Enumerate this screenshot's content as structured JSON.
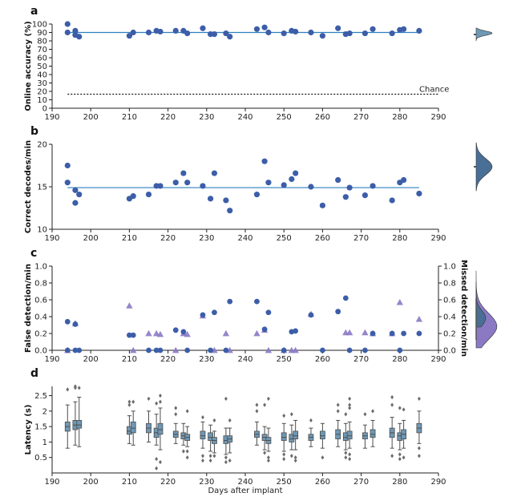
{
  "colors": {
    "dot": "#3c5ea8",
    "line": "#2f7fbf",
    "false_axis": "#2f6db3",
    "missed": "#8b79c4",
    "missed_axis": "#6a55a8",
    "box": "#6f98b5",
    "box_edge": "#4d4d4d",
    "flier": "#6b6b6b"
  },
  "chart_data": [
    {
      "panel": "a",
      "type": "scatter",
      "ylabel": "Online accuracy (%)",
      "ylim": [
        0,
        100
      ],
      "yticks": [
        0,
        10,
        20,
        30,
        40,
        50,
        60,
        70,
        80,
        90,
        100
      ],
      "xlim": [
        190,
        290
      ],
      "xticks": [
        190,
        200,
        210,
        220,
        230,
        240,
        250,
        260,
        270,
        280,
        290
      ],
      "annotation": "Chance",
      "chance_level": 16.7,
      "trend": {
        "x": [
          194,
          285
        ],
        "y": [
          90,
          90
        ]
      },
      "points": {
        "x": [
          194,
          194,
          196,
          196,
          197,
          210,
          211,
          215,
          217,
          218,
          222,
          224,
          225,
          229,
          231,
          232,
          235,
          236,
          243,
          245,
          246,
          250,
          252,
          253,
          257,
          260,
          264,
          266,
          267,
          271,
          273,
          278,
          280,
          281,
          285
        ],
        "y": [
          100,
          90,
          92,
          87,
          85,
          86,
          90,
          90,
          92,
          91,
          92,
          92,
          89,
          95,
          88,
          88,
          89,
          85,
          94,
          96,
          90,
          89,
          92,
          91,
          90,
          86,
          95,
          88,
          89,
          89,
          94,
          89,
          93,
          94,
          92
        ]
      }
    },
    {
      "panel": "b",
      "type": "scatter",
      "ylabel": "Correct decodes/min",
      "ylim": [
        10,
        20
      ],
      "yticks": [
        10,
        15,
        20
      ],
      "xlim": [
        190,
        290
      ],
      "xticks": [
        190,
        200,
        210,
        220,
        230,
        240,
        250,
        260,
        270,
        280,
        290
      ],
      "trend": {
        "x": [
          194,
          285
        ],
        "y": [
          14.9,
          14.9
        ]
      },
      "points": {
        "x": [
          194,
          194,
          196,
          196,
          197,
          210,
          211,
          215,
          217,
          218,
          222,
          224,
          225,
          229,
          231,
          232,
          235,
          236,
          243,
          245,
          246,
          250,
          252,
          253,
          257,
          260,
          264,
          266,
          267,
          271,
          273,
          278,
          280,
          281,
          285
        ],
        "y": [
          17.5,
          15.5,
          14.6,
          13.1,
          14.1,
          13.6,
          13.9,
          14.1,
          15.1,
          15.1,
          15.5,
          16.6,
          15.5,
          15.1,
          13.6,
          16.6,
          13.4,
          12.2,
          14.1,
          18,
          15.5,
          15.2,
          15.9,
          16.6,
          15,
          12.8,
          15.8,
          13.8,
          14.9,
          14,
          15.1,
          13.4,
          15.5,
          15.8,
          14.2
        ]
      }
    },
    {
      "panel": "c",
      "type": "scatter",
      "ylabel": "False detection/min",
      "ylabel_right": "Missed detection/min",
      "ylim": [
        0,
        1
      ],
      "yticks": [
        0,
        0.2,
        0.4,
        0.6,
        0.8,
        1
      ],
      "xlim": [
        190,
        290
      ],
      "xticks": [
        190,
        200,
        210,
        220,
        230,
        240,
        250,
        260,
        270,
        280,
        290
      ],
      "series": [
        {
          "marker": "circle",
          "x": [
            194,
            194,
            196,
            196,
            197,
            210,
            211,
            215,
            217,
            218,
            222,
            224,
            225,
            229,
            231,
            232,
            235,
            236,
            243,
            245,
            246,
            250,
            252,
            253,
            257,
            260,
            264,
            266,
            267,
            271,
            273,
            278,
            280,
            281,
            285
          ],
          "y": [
            0.34,
            0,
            0.31,
            0,
            0,
            0.18,
            0.18,
            0,
            0,
            0,
            0.24,
            0.22,
            0,
            0.42,
            0,
            0.45,
            0,
            0.58,
            0.58,
            0.25,
            0.45,
            0,
            0.22,
            0.23,
            0.42,
            0,
            0.46,
            0.62,
            0,
            0,
            0.2,
            0.2,
            0,
            0.2,
            0.2
          ]
        },
        {
          "marker": "triangle",
          "x": [
            194,
            196,
            210,
            211,
            215,
            217,
            218,
            222,
            224,
            225,
            229,
            232,
            235,
            236,
            243,
            245,
            246,
            250,
            252,
            253,
            257,
            266,
            267,
            271,
            273,
            278,
            280,
            285
          ],
          "y": [
            0,
            0.32,
            0.53,
            0,
            0.2,
            0.2,
            0.19,
            0,
            0.2,
            0.19,
            0.41,
            0,
            0.2,
            0,
            0.2,
            0.24,
            0,
            0,
            0,
            0,
            0.43,
            0.21,
            0.21,
            0.21,
            0.2,
            0.2,
            0.57,
            0.37
          ]
        }
      ]
    },
    {
      "panel": "d",
      "type": "box",
      "xlabel": "Days after implant",
      "ylabel": "Latency (s)",
      "ylim": [
        0,
        2.8
      ],
      "yticks": [
        0.5,
        1,
        1.5,
        2,
        2.5
      ],
      "xlim": [
        190,
        290
      ],
      "xticks": [
        190,
        200,
        210,
        220,
        230,
        240,
        250,
        260,
        270,
        280,
        290
      ],
      "boxes": [
        {
          "x": 194,
          "q1": 1.35,
          "median": 1.5,
          "q3": 1.65,
          "lo": 0.8,
          "hi": 2.2,
          "fliers": [
            2.7
          ]
        },
        {
          "x": 196,
          "q1": 1.4,
          "median": 1.55,
          "q3": 1.7,
          "lo": 0.9,
          "hi": 2.3,
          "fliers": [
            2.75,
            2.8
          ]
        },
        {
          "x": 197,
          "q1": 1.45,
          "median": 1.55,
          "q3": 1.7,
          "lo": 0.85,
          "hi": 2.45,
          "fliers": [
            2.75
          ]
        },
        {
          "x": 210,
          "q1": 1.25,
          "median": 1.35,
          "q3": 1.5,
          "lo": 0.95,
          "hi": 1.85,
          "fliers": [
            2.3,
            2.2
          ]
        },
        {
          "x": 211,
          "q1": 1.3,
          "median": 1.45,
          "q3": 1.65,
          "lo": 0.9,
          "hi": 2.0,
          "fliers": [
            2.3
          ]
        },
        {
          "x": 215,
          "q1": 1.3,
          "median": 1.45,
          "q3": 1.6,
          "lo": 1.0,
          "hi": 2.0,
          "fliers": [
            2.4
          ]
        },
        {
          "x": 217,
          "q1": 1.15,
          "median": 1.3,
          "q3": 1.45,
          "lo": 0.9,
          "hi": 1.9,
          "fliers": [
            2.25,
            0.45,
            0.15
          ]
        },
        {
          "x": 218,
          "q1": 1.25,
          "median": 1.4,
          "q3": 1.6,
          "lo": 0.75,
          "hi": 2.1,
          "fliers": [
            2.5,
            2.3,
            0.35
          ]
        },
        {
          "x": 222,
          "q1": 1.15,
          "median": 1.25,
          "q3": 1.35,
          "lo": 0.95,
          "hi": 1.6,
          "fliers": [
            1.9,
            2.1
          ]
        },
        {
          "x": 224,
          "q1": 1.1,
          "median": 1.2,
          "q3": 1.3,
          "lo": 0.9,
          "hi": 1.6,
          "fliers": [
            0.7
          ]
        },
        {
          "x": 225,
          "q1": 1.05,
          "median": 1.15,
          "q3": 1.25,
          "lo": 0.85,
          "hi": 1.5,
          "fliers": [
            2.0,
            0.7,
            0.5
          ]
        },
        {
          "x": 229,
          "q1": 1.1,
          "median": 1.2,
          "q3": 1.35,
          "lo": 0.8,
          "hi": 1.65,
          "fliers": [
            0.55,
            0.4,
            1.8
          ]
        },
        {
          "x": 231,
          "q1": 1.05,
          "median": 1.15,
          "q3": 1.3,
          "lo": 0.7,
          "hi": 1.55,
          "fliers": [
            0.4,
            0.55
          ]
        },
        {
          "x": 232,
          "q1": 0.95,
          "median": 1.05,
          "q3": 1.15,
          "lo": 0.65,
          "hi": 1.35,
          "fliers": [
            1.7,
            0.55
          ]
        },
        {
          "x": 235,
          "q1": 0.95,
          "median": 1.05,
          "q3": 1.2,
          "lo": 0.6,
          "hi": 1.45,
          "fliers": [
            2.4,
            0.5,
            0.35
          ]
        },
        {
          "x": 236,
          "q1": 1.0,
          "median": 1.1,
          "q3": 1.2,
          "lo": 0.65,
          "hi": 1.45,
          "fliers": [
            1.7,
            0.4
          ]
        },
        {
          "x": 243,
          "q1": 1.15,
          "median": 1.25,
          "q3": 1.35,
          "lo": 0.9,
          "hi": 1.65,
          "fliers": [
            2.0,
            2.2
          ]
        },
        {
          "x": 245,
          "q1": 1.05,
          "median": 1.15,
          "q3": 1.25,
          "lo": 0.75,
          "hi": 1.5,
          "fliers": [
            2.2,
            0.65
          ]
        },
        {
          "x": 246,
          "q1": 0.95,
          "median": 1.05,
          "q3": 1.15,
          "lo": 0.7,
          "hi": 1.45,
          "fliers": [
            2.4,
            0.5,
            0.4
          ]
        },
        {
          "x": 250,
          "q1": 1.05,
          "median": 1.15,
          "q3": 1.3,
          "lo": 0.7,
          "hi": 1.6,
          "fliers": [
            1.85,
            0.6,
            0.45
          ]
        },
        {
          "x": 252,
          "q1": 1.0,
          "median": 1.1,
          "q3": 1.25,
          "lo": 0.75,
          "hi": 1.55,
          "fliers": [
            1.9,
            0.55
          ]
        },
        {
          "x": 253,
          "q1": 1.1,
          "median": 1.2,
          "q3": 1.35,
          "lo": 0.75,
          "hi": 1.7,
          "fliers": [
            0.5,
            0.4
          ]
        },
        {
          "x": 257,
          "q1": 1.05,
          "median": 1.15,
          "q3": 1.25,
          "lo": 0.85,
          "hi": 1.45,
          "fliers": [
            1.7
          ]
        },
        {
          "x": 260,
          "q1": 1.1,
          "median": 1.2,
          "q3": 1.35,
          "lo": 0.8,
          "hi": 1.6,
          "fliers": [
            0.5
          ]
        },
        {
          "x": 264,
          "q1": 1.1,
          "median": 1.25,
          "q3": 1.4,
          "lo": 0.85,
          "hi": 1.7,
          "fliers": [
            2.2,
            2.0
          ]
        },
        {
          "x": 266,
          "q1": 1.05,
          "median": 1.15,
          "q3": 1.3,
          "lo": 0.75,
          "hi": 1.6,
          "fliers": [
            1.9,
            0.65,
            0.5
          ]
        },
        {
          "x": 267,
          "q1": 1.1,
          "median": 1.2,
          "q3": 1.35,
          "lo": 0.8,
          "hi": 1.65,
          "fliers": [
            2.4,
            2.2,
            2.1,
            0.6,
            0.45
          ]
        },
        {
          "x": 271,
          "q1": 1.1,
          "median": 1.2,
          "q3": 1.3,
          "lo": 0.8,
          "hi": 1.55,
          "fliers": [
            1.9
          ]
        },
        {
          "x": 273,
          "q1": 1.15,
          "median": 1.25,
          "q3": 1.4,
          "lo": 0.85,
          "hi": 1.7,
          "fliers": [
            2.0
          ]
        },
        {
          "x": 278,
          "q1": 1.15,
          "median": 1.3,
          "q3": 1.45,
          "lo": 0.8,
          "hi": 1.8,
          "fliers": [
            2.45,
            2.2,
            0.55
          ]
        },
        {
          "x": 280,
          "q1": 1.05,
          "median": 1.2,
          "q3": 1.3,
          "lo": 0.75,
          "hi": 1.6,
          "fliers": [
            2.1,
            0.6,
            0.45
          ]
        },
        {
          "x": 281,
          "q1": 1.1,
          "median": 1.25,
          "q3": 1.4,
          "lo": 0.8,
          "hi": 1.7,
          "fliers": [
            2.05,
            0.5
          ]
        },
        {
          "x": 285,
          "q1": 1.3,
          "median": 1.45,
          "q3": 1.6,
          "lo": 0.95,
          "hi": 2.0,
          "fliers": [
            2.4,
            0.8,
            0.55
          ]
        }
      ]
    }
  ]
}
